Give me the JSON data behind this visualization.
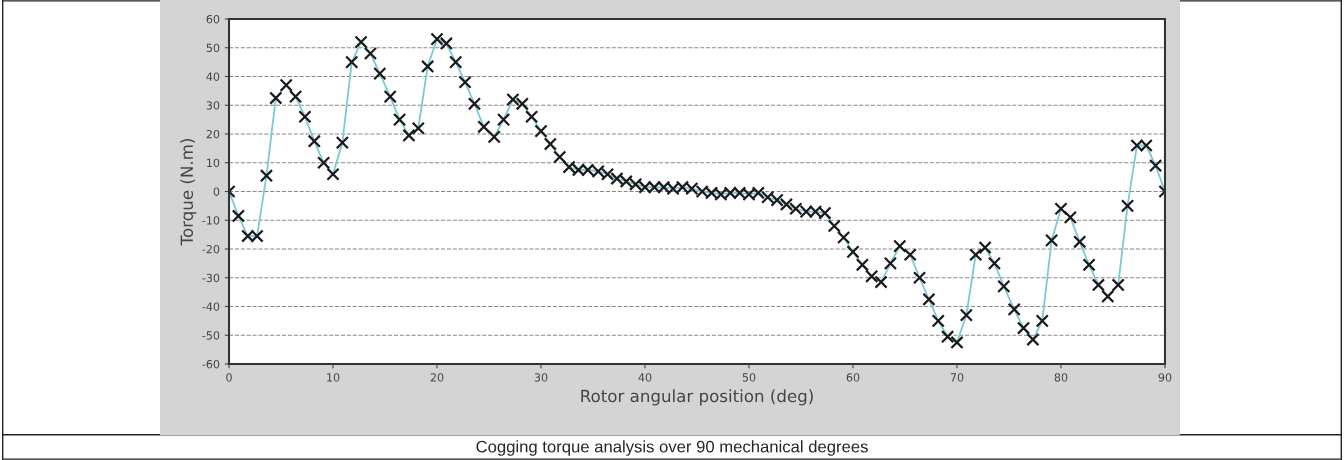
{
  "chart_data": {
    "type": "line",
    "xlabel": "Rotor angular position (deg)",
    "ylabel": "Torque (N.m)",
    "annotations": [
      "Cogging torque analysis over 90 mechanical degrees"
    ],
    "x": [
      0,
      0.9,
      1.8,
      2.7,
      3.6,
      4.5,
      5.5,
      6.4,
      7.3,
      8.2,
      9.1,
      10,
      10.9,
      11.8,
      12.7,
      13.6,
      14.5,
      15.5,
      16.4,
      17.3,
      18.2,
      19.1,
      20,
      20.9,
      21.8,
      22.7,
      23.6,
      24.5,
      25.5,
      26.4,
      27.3,
      28.2,
      29.1,
      30,
      30.9,
      31.8,
      32.7,
      33.6,
      34.5,
      35.5,
      36.4,
      37.3,
      38.2,
      39.1,
      40,
      40.9,
      41.8,
      42.7,
      43.6,
      44.5,
      45.5,
      46.4,
      47.3,
      48.2,
      49.1,
      50,
      50.9,
      51.8,
      52.7,
      53.6,
      54.5,
      55.5,
      56.4,
      57.3,
      58.2,
      59.1,
      60,
      60.9,
      61.8,
      62.7,
      63.6,
      64.5,
      65.5,
      66.4,
      67.3,
      68.2,
      69.1,
      70,
      70.9,
      71.8,
      72.7,
      73.6,
      74.5,
      75.5,
      76.4,
      77.3,
      78.2,
      79.1,
      80,
      80.9,
      81.8,
      82.7,
      83.6,
      84.5,
      85.5,
      86.4,
      87.3,
      88.2,
      89.1,
      90
    ],
    "series": [
      {
        "color": "#7ec8d8",
        "values": [
          0,
          -8.5,
          -15.5,
          -15.5,
          5.5,
          32.5,
          37,
          33,
          26,
          17.5,
          10,
          6,
          17,
          45,
          52,
          48,
          41,
          33,
          25,
          19.5,
          22,
          43.5,
          53,
          51.5,
          45,
          38,
          30.5,
          22.5,
          19,
          25,
          32,
          30.5,
          26,
          21,
          16.5,
          12,
          8.5,
          7.5,
          7.5,
          7,
          6,
          4.5,
          3.5,
          2.5,
          1.5,
          1.5,
          1.5,
          1,
          1.5,
          1,
          0,
          -0.5,
          -1,
          -0.5,
          -0.5,
          -1,
          -0.5,
          -2,
          -3,
          -4.5,
          -6,
          -7,
          -7,
          -7.5,
          -12,
          -16,
          -21,
          -25.5,
          -29.5,
          -31.5,
          -25,
          -19,
          -22,
          -30,
          -37.5,
          -45,
          -50.5,
          -52.5,
          -43,
          -22,
          -19.5,
          -25,
          -33,
          -41,
          -47.5,
          -51.5,
          -45,
          -17,
          -6,
          -9,
          -17.5,
          -25.5,
          -32.5,
          -36.5,
          -32.5,
          -5,
          16,
          16,
          9,
          0
        ]
      }
    ],
    "xlim": [
      0,
      90
    ],
    "xticks": [
      0,
      10,
      20,
      30,
      40,
      50,
      60,
      70,
      80,
      90
    ],
    "ylim": [
      -60,
      60
    ],
    "yticks": [
      -60,
      -50,
      -40,
      -30,
      -20,
      -10,
      0,
      10,
      20,
      30,
      40,
      50,
      60
    ],
    "grid": "y",
    "marker": "cross",
    "line_style": "solid",
    "legend": false
  }
}
